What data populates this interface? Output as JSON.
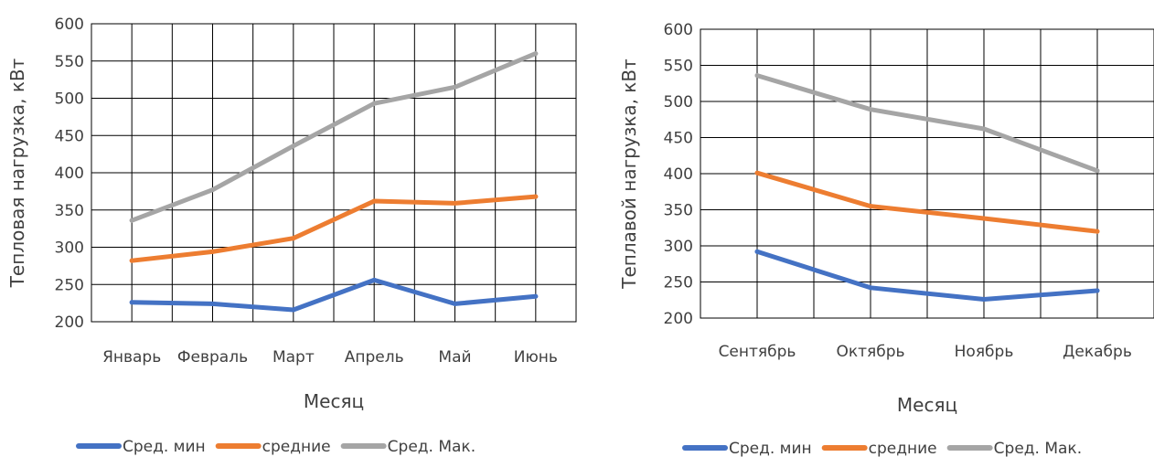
{
  "chart_data": [
    {
      "type": "line",
      "categories": [
        "Январь",
        "Февраль",
        "Март",
        "Апрель",
        "Май",
        "Июнь"
      ],
      "series": [
        {
          "name": "Сред. мин",
          "color": "#4472C4",
          "values": [
            226,
            224,
            216,
            256,
            224,
            234
          ]
        },
        {
          "name": "средние",
          "color": "#ED7D31",
          "values": [
            282,
            294,
            312,
            362,
            359,
            368
          ]
        },
        {
          "name": "Сред. Мак.",
          "color": "#A5A5A5",
          "values": [
            336,
            377,
            436,
            493,
            515,
            560
          ]
        }
      ],
      "xlabel": "Месяц",
      "ylabel": "Тепловая нагрузка, кВт",
      "ylim": [
        200,
        600
      ],
      "yticks": [
        200,
        250,
        300,
        350,
        400,
        450,
        500,
        550,
        600
      ],
      "grid": true,
      "legend": "bottom"
    },
    {
      "type": "line",
      "categories": [
        "Сентябрь",
        "Октябрь",
        "Ноябрь",
        "Декабрь"
      ],
      "series": [
        {
          "name": "Сред. мин",
          "color": "#4472C4",
          "values": [
            292,
            242,
            226,
            238
          ]
        },
        {
          "name": "средние",
          "color": "#ED7D31",
          "values": [
            401,
            355,
            338,
            320
          ]
        },
        {
          "name": "Сред. Мак.",
          "color": "#A5A5A5",
          "values": [
            536,
            489,
            462,
            404
          ]
        }
      ],
      "xlabel": "Месяц",
      "ylabel": "Теплавой нагрузка, кВт",
      "ylim": [
        200,
        600
      ],
      "yticks": [
        200,
        250,
        300,
        350,
        400,
        450,
        500,
        550,
        600
      ],
      "grid": true,
      "legend": "bottom"
    }
  ]
}
